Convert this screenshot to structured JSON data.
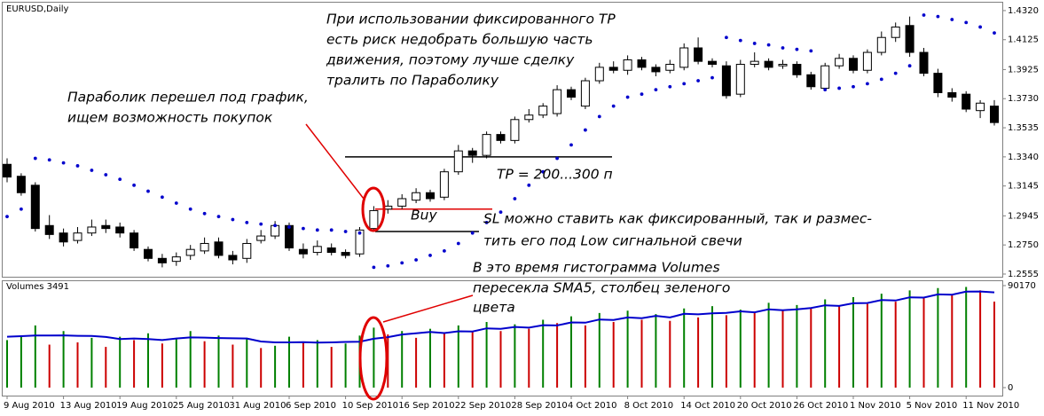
{
  "chart_data": [
    {
      "type": "candlestick",
      "title": "EURUSD,Daily",
      "categories": [
        "9 Aug 2010",
        null,
        null,
        null,
        "13 Aug 2010",
        null,
        null,
        null,
        "19 Aug 2010",
        null,
        null,
        null,
        "25 Aug 2010",
        null,
        null,
        null,
        "31 Aug 2010",
        null,
        null,
        null,
        "6 Sep 2010",
        null,
        null,
        null,
        "10 Sep 2010",
        null,
        null,
        null,
        "16 Sep 2010",
        null,
        null,
        null,
        "22 Sep 2010",
        null,
        null,
        null,
        "28 Sep 2010",
        null,
        null,
        null,
        "4 Oct 2010",
        null,
        null,
        null,
        "8 Oct 2010",
        null,
        null,
        null,
        "14 Oct 2010",
        null,
        null,
        null,
        "20 Oct 2010",
        null,
        null,
        null,
        "26 Oct 2010",
        null,
        null,
        null,
        "1 Nov 2010",
        null,
        null,
        null,
        "5 Nov 2010",
        null,
        null,
        null,
        "11 Nov 2010",
        null,
        null
      ],
      "open": [
        1.329,
        1.321,
        1.315,
        1.288,
        1.283,
        1.278,
        1.283,
        1.288,
        1.287,
        1.283,
        1.272,
        1.266,
        1.264,
        1.268,
        1.271,
        1.277,
        1.268,
        1.266,
        1.278,
        1.281,
        1.288,
        1.272,
        1.27,
        1.273,
        1.27,
        1.269,
        1.286,
        1.299,
        1.301,
        1.305,
        1.31,
        1.307,
        1.324,
        1.338,
        1.335,
        1.349,
        1.345,
        1.359,
        1.362,
        1.363,
        1.379,
        1.368,
        1.385,
        1.394,
        1.392,
        1.399,
        1.394,
        1.392,
        1.394,
        1.407,
        1.398,
        1.395,
        1.376,
        1.396,
        1.398,
        1.395,
        1.396,
        1.389,
        1.38,
        1.395,
        1.4,
        1.392,
        1.404,
        1.414,
        1.422,
        1.404,
        1.39,
        1.377,
        1.376,
        1.365,
        1.368
      ],
      "high": [
        1.333,
        1.323,
        1.317,
        1.295,
        1.286,
        1.287,
        1.292,
        1.292,
        1.29,
        1.285,
        1.274,
        1.269,
        1.27,
        1.275,
        1.28,
        1.28,
        1.271,
        1.279,
        1.285,
        1.291,
        1.29,
        1.276,
        1.278,
        1.276,
        1.272,
        1.287,
        1.301,
        1.305,
        1.309,
        1.313,
        1.312,
        1.326,
        1.342,
        1.34,
        1.351,
        1.351,
        1.361,
        1.366,
        1.37,
        1.382,
        1.381,
        1.387,
        1.397,
        1.398,
        1.402,
        1.401,
        1.396,
        1.399,
        1.41,
        1.414,
        1.4,
        1.398,
        1.399,
        1.404,
        1.4,
        1.399,
        1.398,
        1.391,
        1.397,
        1.403,
        1.402,
        1.406,
        1.418,
        1.424,
        1.428,
        1.407,
        1.393,
        1.38,
        1.378,
        1.372,
        1.372
      ],
      "low": [
        1.317,
        1.308,
        1.284,
        1.279,
        1.274,
        1.276,
        1.281,
        1.283,
        1.28,
        1.271,
        1.264,
        1.26,
        1.261,
        1.265,
        1.269,
        1.266,
        1.262,
        1.263,
        1.276,
        1.279,
        1.271,
        1.266,
        1.268,
        1.268,
        1.266,
        1.267,
        1.284,
        1.296,
        1.299,
        1.303,
        1.304,
        1.305,
        1.322,
        1.33,
        1.333,
        1.343,
        1.343,
        1.357,
        1.36,
        1.361,
        1.372,
        1.366,
        1.383,
        1.39,
        1.389,
        1.392,
        1.388,
        1.39,
        1.392,
        1.396,
        1.394,
        1.373,
        1.374,
        1.394,
        1.392,
        1.393,
        1.387,
        1.379,
        1.378,
        1.393,
        1.39,
        1.39,
        1.402,
        1.411,
        1.401,
        1.388,
        1.374,
        1.371,
        1.364,
        1.36,
        1.355
      ],
      "close": [
        1.3205,
        1.31,
        1.286,
        1.282,
        1.277,
        1.283,
        1.287,
        1.286,
        1.283,
        1.273,
        1.266,
        1.263,
        1.267,
        1.272,
        1.276,
        1.268,
        1.265,
        1.276,
        1.281,
        1.288,
        1.273,
        1.269,
        1.274,
        1.27,
        1.268,
        1.285,
        1.298,
        1.301,
        1.306,
        1.31,
        1.306,
        1.324,
        1.338,
        1.335,
        1.349,
        1.345,
        1.359,
        1.362,
        1.368,
        1.379,
        1.374,
        1.385,
        1.394,
        1.392,
        1.399,
        1.394,
        1.391,
        1.396,
        1.407,
        1.398,
        1.396,
        1.375,
        1.396,
        1.398,
        1.394,
        1.396,
        1.389,
        1.381,
        1.395,
        1.4,
        1.392,
        1.404,
        1.414,
        1.421,
        1.404,
        1.39,
        1.377,
        1.374,
        1.366,
        1.37,
        1.357
      ],
      "up_color": "#ffffff",
      "down_color": "#000000",
      "sar": [
        1.294,
        1.299,
        1.333,
        1.332,
        1.33,
        1.328,
        1.325,
        1.322,
        1.319,
        1.315,
        1.311,
        1.307,
        1.303,
        1.299,
        1.296,
        1.294,
        1.292,
        1.29,
        1.289,
        1.288,
        1.287,
        1.286,
        1.285,
        1.285,
        1.284,
        1.283,
        1.26,
        1.261,
        1.263,
        1.265,
        1.268,
        1.271,
        1.276,
        1.283,
        1.29,
        1.297,
        1.306,
        1.315,
        1.324,
        1.333,
        1.342,
        1.352,
        1.361,
        1.368,
        1.374,
        1.376,
        1.379,
        1.381,
        1.383,
        1.385,
        1.387,
        1.414,
        1.412,
        1.41,
        1.409,
        1.407,
        1.406,
        1.405,
        1.379,
        1.38,
        1.381,
        1.383,
        1.386,
        1.39,
        1.395,
        1.429,
        1.428,
        1.426,
        1.424,
        1.421,
        1.417
      ],
      "sar_color": "#0000cc",
      "levels": [
        {
          "value": 1.334,
          "color": "#000000"
        },
        {
          "value": 1.299,
          "color": "#e00000"
        },
        {
          "value": 1.284,
          "color": "#000000"
        }
      ],
      "ylim": [
        1.2537,
        1.4379
      ],
      "yticks": [
        {
          "value": 1.432,
          "label": "1.4320"
        },
        {
          "value": 1.4125,
          "label": "1.4125"
        },
        {
          "value": 1.3925,
          "label": "1.3925"
        },
        {
          "value": 1.373,
          "label": "1.3730"
        },
        {
          "value": 1.3535,
          "label": "1.3535"
        },
        {
          "value": 1.334,
          "label": "1.3340"
        },
        {
          "value": 1.3145,
          "label": "1.3145"
        },
        {
          "value": 1.2945,
          "label": "1.2945"
        },
        {
          "value": 1.275,
          "label": "1.2750"
        },
        {
          "value": 1.2555,
          "label": "1.2555"
        }
      ],
      "annotation_color": "#e00000",
      "annotations": [
        {
          "lines": [
            "При использовании фиксированного TP",
            "есть риск недобрать большую часть",
            "движения, поэтому лучше сделку",
            "тралить по Параболику"
          ]
        },
        {
          "lines": [
            "Параболик перешел под график,",
            "ищем возможность покупок"
          ]
        },
        {
          "lines": [
            "TP = 200...300 п"
          ]
        },
        {
          "lines": [
            "Buy"
          ]
        },
        {
          "lines": [
            "SL можно ставить как фиксированный, так и  размес-",
            "тить его под  Low сигнальной свечи"
          ]
        },
        {
          "lines": [
            "В это время гистограмма Volumes",
            "пересекла SMA5, столбец зеленого",
            "цвета"
          ]
        }
      ]
    },
    {
      "type": "volume",
      "title": "Volumes 3491",
      "values": [
        42000,
        46000,
        55000,
        38000,
        50000,
        40000,
        44000,
        36000,
        45000,
        42000,
        48000,
        39000,
        43000,
        50000,
        41000,
        46000,
        38000,
        44000,
        35000,
        37000,
        45000,
        40000,
        42000,
        36000,
        39000,
        46000,
        53000,
        47000,
        50000,
        44000,
        52000,
        48000,
        55000,
        49000,
        58000,
        50000,
        56000,
        52000,
        60000,
        57000,
        63000,
        55000,
        66000,
        58000,
        68000,
        60000,
        65000,
        59000,
        70000,
        62000,
        72000,
        64000,
        69000,
        66000,
        75000,
        68000,
        73000,
        70000,
        78000,
        72000,
        80000,
        74000,
        83000,
        76000,
        86000,
        79000,
        88000,
        82000,
        89000,
        86000,
        76000
      ],
      "sma": [
        45000,
        45500,
        46000,
        46000,
        46200,
        45800,
        45600,
        44800,
        43000,
        43400,
        43000,
        42000,
        43400,
        44400,
        44200,
        43800,
        43600,
        43400,
        40800,
        40000,
        40000,
        40200,
        39800,
        40000,
        40400,
        40600,
        43200,
        44600,
        47000,
        48000,
        49200,
        48200,
        49800,
        49600,
        52400,
        52000,
        53600,
        53000,
        55200,
        55000,
        57600,
        57400,
        60200,
        59800,
        62000,
        61400,
        63400,
        62000,
        65200,
        64800,
        65600,
        66000,
        67400,
        66600,
        69200,
        68400,
        69200,
        70400,
        72800,
        72200,
        74600,
        74800,
        77400,
        77000,
        79800,
        79600,
        82400,
        82200,
        84800,
        85000,
        84200
      ],
      "up_color": "#008000",
      "down_color": "#cc0000",
      "sma_color": "#0000cc",
      "ylim": [
        0,
        90170
      ],
      "yticks": [
        90170,
        0
      ]
    }
  ]
}
